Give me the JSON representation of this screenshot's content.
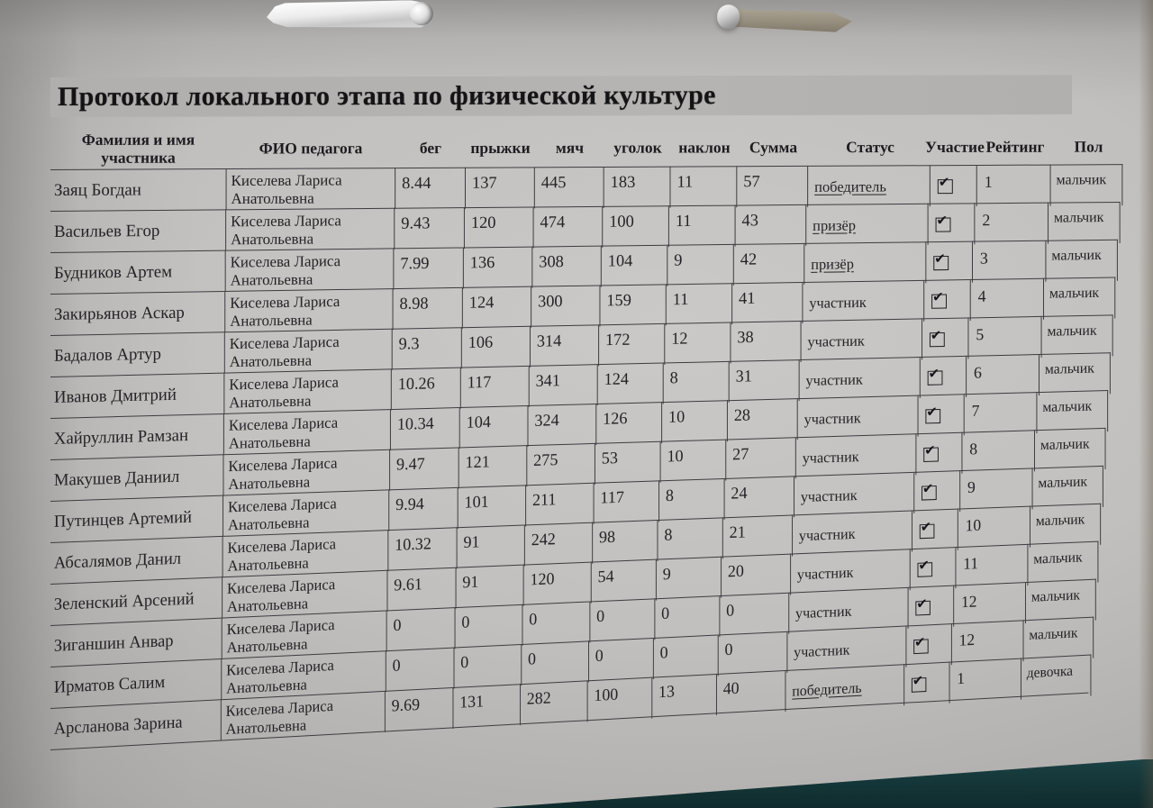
{
  "title": "Протокол локального этапа по физической культуре",
  "colors": {
    "paper": "#c4c2c0",
    "title_highlight": "#b3b1af",
    "ink": "#232327",
    "table_border": "#3c3c41",
    "desk_teal": "#16393b",
    "clip_left_silver": "#e6e6e6",
    "clip_right_bronze": "#9a9282"
  },
  "photo_objects": {
    "clip_left": "binder-clip",
    "clip_right": "binder-clip",
    "surface": "teal-desk"
  },
  "table": {
    "checkbox_glyph": "✔",
    "columns": [
      "Фамилия и имя участника",
      "ФИО педагога",
      "бег",
      "прыжки",
      "мяч",
      "уголок",
      "наклон",
      "Сумма",
      "Статус",
      "Участие",
      "Рейтинг",
      "Пол"
    ],
    "rows": [
      {
        "name": "Заяц Богдан",
        "teacher": "Киселева Лариса Анатольевна",
        "run": "8.44",
        "jumps": "137",
        "ball": "445",
        "corner": "183",
        "bend": "11",
        "total": "57",
        "status": "победитель",
        "status_underlined": true,
        "participation_checked": true,
        "rating": "1",
        "gender": "мальчик"
      },
      {
        "name": "Васильев Егор",
        "teacher": "Киселева Лариса Анатольевна",
        "run": "9.43",
        "jumps": "120",
        "ball": "474",
        "corner": "100",
        "bend": "11",
        "total": "43",
        "status": "призёр",
        "status_underlined": true,
        "participation_checked": true,
        "rating": "2",
        "gender": "мальчик"
      },
      {
        "name": "Будников Артем",
        "teacher": "Киселева Лариса Анатольевна",
        "run": "7.99",
        "jumps": "136",
        "ball": "308",
        "corner": "104",
        "bend": "9",
        "total": "42",
        "status": "призёр",
        "status_underlined": true,
        "participation_checked": true,
        "rating": "3",
        "gender": "мальчик"
      },
      {
        "name": "Закирьянов Аскар",
        "teacher": "Киселева Лариса Анатольевна",
        "run": "8.98",
        "jumps": "124",
        "ball": "300",
        "corner": "159",
        "bend": "11",
        "total": "41",
        "status": "участник",
        "status_underlined": false,
        "participation_checked": true,
        "rating": "4",
        "gender": "мальчик"
      },
      {
        "name": "Бадалов Артур",
        "teacher": "Киселева Лариса Анатольевна",
        "run": "9.3",
        "jumps": "106",
        "ball": "314",
        "corner": "172",
        "bend": "12",
        "total": "38",
        "status": "участник",
        "status_underlined": false,
        "participation_checked": true,
        "rating": "5",
        "gender": "мальчик"
      },
      {
        "name": "Иванов Дмитрий",
        "teacher": "Киселева Лариса Анатольевна",
        "run": "10.26",
        "jumps": "117",
        "ball": "341",
        "corner": "124",
        "bend": "8",
        "total": "31",
        "status": "участник",
        "status_underlined": false,
        "participation_checked": true,
        "rating": "6",
        "gender": "мальчик"
      },
      {
        "name": "Хайруллин Рамзан",
        "teacher": "Киселева Лариса Анатольевна",
        "run": "10.34",
        "jumps": "104",
        "ball": "324",
        "corner": "126",
        "bend": "10",
        "total": "28",
        "status": "участник",
        "status_underlined": false,
        "participation_checked": true,
        "rating": "7",
        "gender": "мальчик"
      },
      {
        "name": "Макушев Даниил",
        "teacher": "Киселева Лариса Анатольевна",
        "run": "9.47",
        "jumps": "121",
        "ball": "275",
        "corner": "53",
        "bend": "10",
        "total": "27",
        "status": "участник",
        "status_underlined": false,
        "participation_checked": true,
        "rating": "8",
        "gender": "мальчик"
      },
      {
        "name": "Путинцев Артемий",
        "teacher": "Киселева Лариса Анатольевна",
        "run": "9.94",
        "jumps": "101",
        "ball": "211",
        "corner": "117",
        "bend": "8",
        "total": "24",
        "status": "участник",
        "status_underlined": false,
        "participation_checked": true,
        "rating": "9",
        "gender": "мальчик"
      },
      {
        "name": "Абсалямов Данил",
        "teacher": "Киселева Лариса Анатольевна",
        "run": "10.32",
        "jumps": "91",
        "ball": "242",
        "corner": "98",
        "bend": "8",
        "total": "21",
        "status": "участник",
        "status_underlined": false,
        "participation_checked": true,
        "rating": "10",
        "gender": "мальчик"
      },
      {
        "name": "Зеленский Арсений",
        "teacher": "Киселева Лариса Анатольевна",
        "run": "9.61",
        "jumps": "91",
        "ball": "120",
        "corner": "54",
        "bend": "9",
        "total": "20",
        "status": "участник",
        "status_underlined": false,
        "participation_checked": true,
        "rating": "11",
        "gender": "мальчик"
      },
      {
        "name": "Зиганшин Анвар",
        "teacher": "Киселева Лариса Анатольевна",
        "run": "0",
        "jumps": "0",
        "ball": "0",
        "corner": "0",
        "bend": "0",
        "total": "0",
        "status": "участник",
        "status_underlined": false,
        "participation_checked": true,
        "rating": "12",
        "gender": "мальчик"
      },
      {
        "name": "Ирматов Салим",
        "teacher": "Киселева Лариса Анатольевна",
        "run": "0",
        "jumps": "0",
        "ball": "0",
        "corner": "0",
        "bend": "0",
        "total": "0",
        "status": "участник",
        "status_underlined": false,
        "participation_checked": true,
        "rating": "12",
        "gender": "мальчик"
      },
      {
        "name": "Арсланова Зарина",
        "teacher": "Киселева Лариса Анатольевна",
        "run": "9.69",
        "jumps": "131",
        "ball": "282",
        "corner": "100",
        "bend": "13",
        "total": "40",
        "status": "победитель",
        "status_underlined": true,
        "participation_checked": true,
        "rating": "1",
        "gender": "девочка"
      }
    ]
  }
}
